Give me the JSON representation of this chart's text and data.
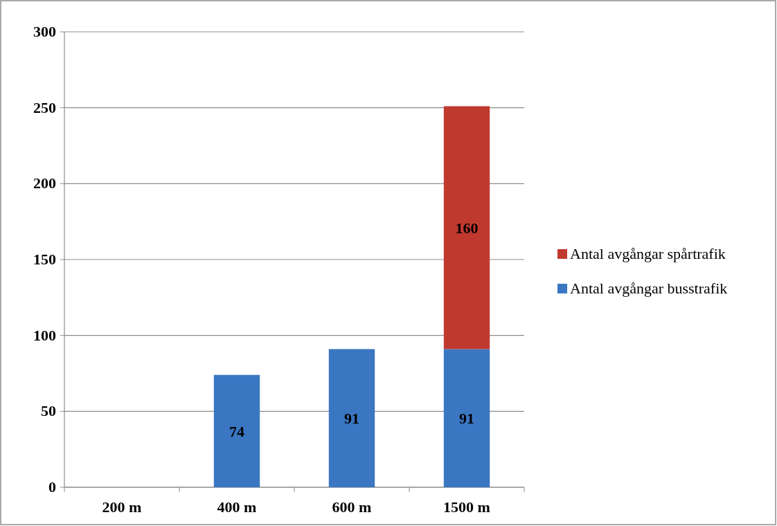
{
  "chart_data": {
    "type": "bar",
    "stacked": true,
    "categories": [
      "200 m",
      "400 m",
      "600 m",
      "1500 m"
    ],
    "series": [
      {
        "name": "Antal avgångar busstrafik",
        "color": "#3a76c2",
        "values": [
          null,
          74,
          91,
          91
        ]
      },
      {
        "name": "Antal avgångar spårtrafik",
        "color": "#c0392f",
        "values": [
          null,
          null,
          null,
          160
        ]
      }
    ],
    "ylim": [
      0,
      300
    ],
    "yticks": [
      0,
      50,
      100,
      150,
      200,
      250,
      300
    ],
    "grid": "y",
    "legend": "right",
    "data_labels": true
  }
}
